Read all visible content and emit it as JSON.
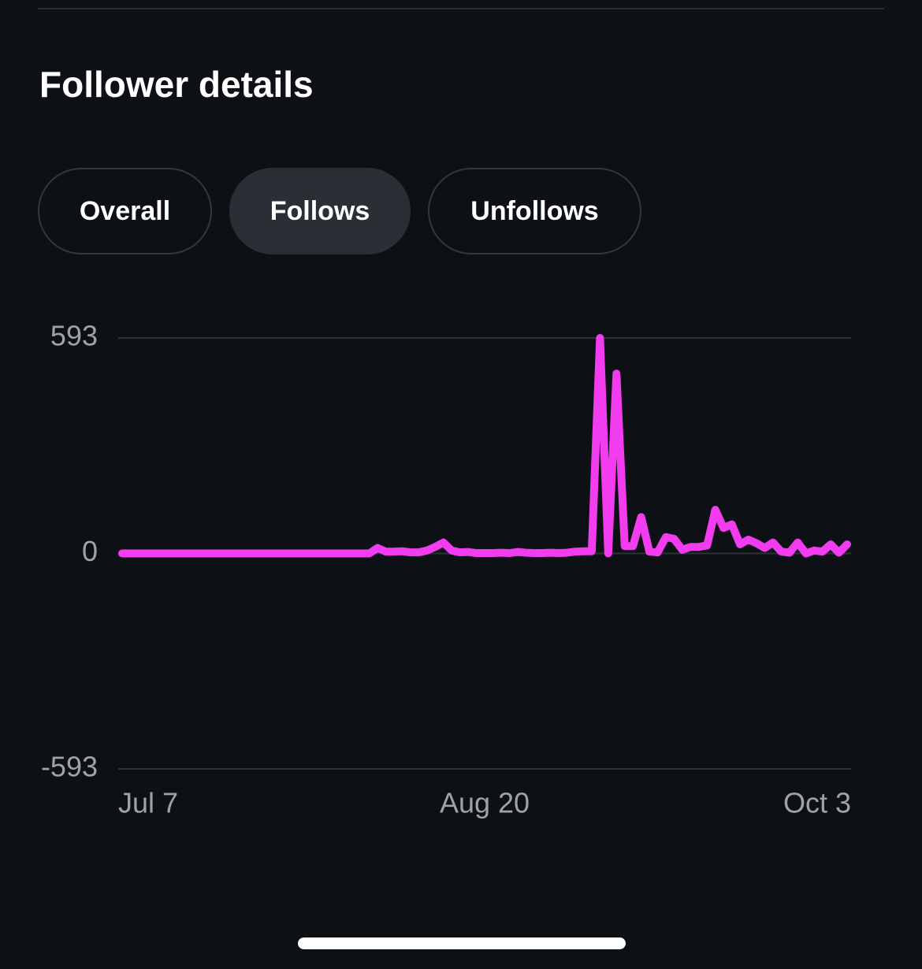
{
  "header": {
    "title": "Follower details"
  },
  "tabs": [
    "Overall",
    "Follows",
    "Unfollows"
  ],
  "chart_data": {
    "type": "line",
    "categories": [
      "Jul 7",
      null,
      null,
      null,
      null,
      null,
      null,
      null,
      null,
      null,
      null,
      null,
      null,
      null,
      null,
      null,
      null,
      null,
      null,
      null,
      null,
      null,
      null,
      null,
      null,
      null,
      null,
      null,
      null,
      null,
      null,
      null,
      null,
      null,
      null,
      null,
      null,
      null,
      null,
      null,
      null,
      null,
      null,
      null,
      "Aug 20",
      null,
      null,
      null,
      null,
      null,
      null,
      null,
      null,
      null,
      null,
      null,
      null,
      null,
      null,
      null,
      null,
      null,
      null,
      null,
      null,
      null,
      null,
      null,
      null,
      null,
      null,
      null,
      null,
      null,
      null,
      null,
      null,
      null,
      null,
      null,
      null,
      null,
      null,
      null,
      null,
      null,
      null,
      null,
      "Oct 3"
    ],
    "series": [
      {
        "color": "#f23cf0",
        "values": [
          0,
          0,
          0,
          0,
          0,
          0,
          0,
          0,
          0,
          0,
          0,
          0,
          0,
          0,
          0,
          0,
          0,
          0,
          0,
          0,
          0,
          0,
          0,
          0,
          0,
          0,
          0,
          0,
          0,
          0,
          0,
          15,
          5,
          5,
          6,
          3,
          3,
          8,
          18,
          30,
          8,
          3,
          4,
          1,
          1,
          1,
          2,
          1,
          4,
          2,
          1,
          1,
          2,
          1,
          2,
          5,
          6,
          6,
          593,
          0,
          495,
          20,
          20,
          100,
          5,
          3,
          45,
          40,
          10,
          18,
          18,
          22,
          120,
          70,
          80,
          25,
          38,
          28,
          15,
          30,
          5,
          2,
          30,
          0,
          8,
          5,
          25,
          2,
          25
        ]
      }
    ],
    "ylim": [
      -593,
      593
    ],
    "yticks": [
      -593,
      0,
      593
    ],
    "grid": true
  }
}
